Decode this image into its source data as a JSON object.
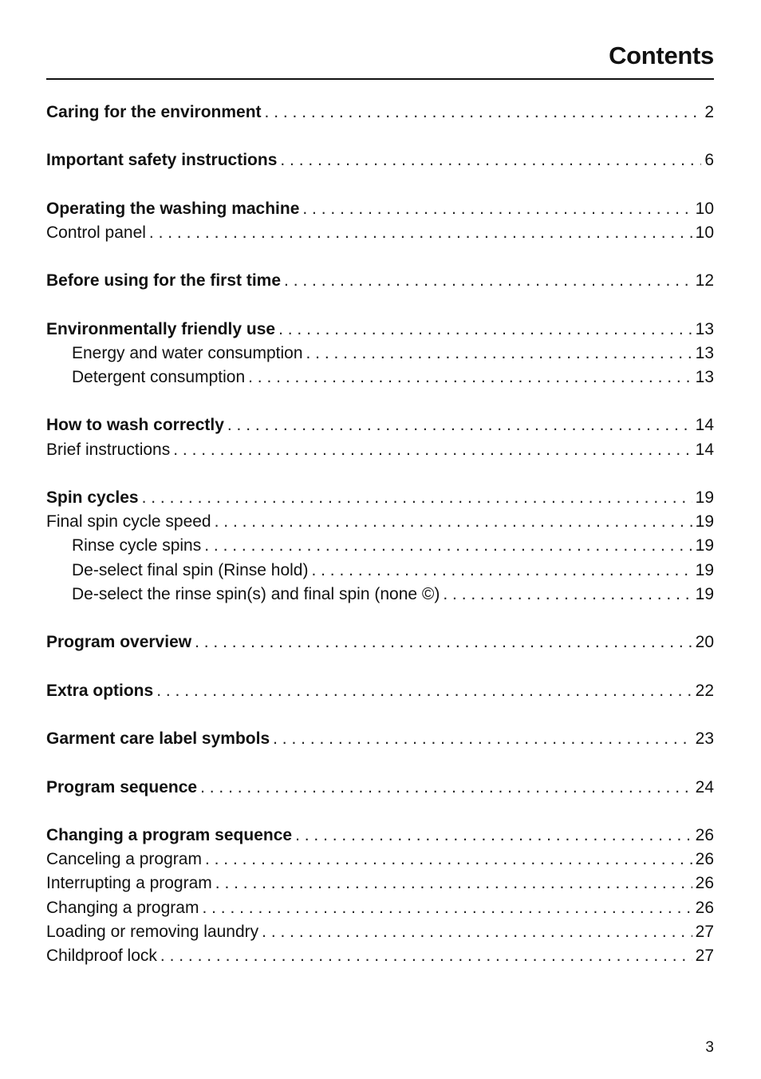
{
  "title": "Contents",
  "entries": [
    {
      "label": "Caring for the environment",
      "page": "2",
      "level": "bold"
    },
    {
      "label": "Important safety instructions",
      "page": "6",
      "level": "bold"
    },
    {
      "label": "Operating the washing machine",
      "page": "10",
      "level": "bold"
    },
    {
      "label": "Control panel",
      "page": "10",
      "level": "sub"
    },
    {
      "label": "Before using for the first time",
      "page": "12",
      "level": "bold"
    },
    {
      "label": "Environmentally friendly use",
      "page": "13",
      "level": "bold"
    },
    {
      "label": "Energy and water consumption",
      "page": "13",
      "level": "subsub"
    },
    {
      "label": "Detergent consumption",
      "page": "13",
      "level": "subsub"
    },
    {
      "label": "How to wash correctly",
      "page": "14",
      "level": "bold"
    },
    {
      "label": "Brief instructions",
      "page": "14",
      "level": "sub"
    },
    {
      "label": "Spin cycles",
      "page": "19",
      "level": "bold"
    },
    {
      "label": "Final spin cycle speed",
      "page": "19",
      "level": "sub"
    },
    {
      "label": "Rinse cycle spins",
      "page": "19",
      "level": "subsub"
    },
    {
      "label": "De-select final spin (Rinse hold)",
      "page": "19",
      "level": "subsub"
    },
    {
      "label": "De-select the rinse spin(s) and final spin (none ©)",
      "page": "19",
      "level": "subsub"
    },
    {
      "label": "Program overview",
      "page": "20",
      "level": "bold"
    },
    {
      "label": "Extra options",
      "page": "22",
      "level": "bold"
    },
    {
      "label": "Garment care label symbols",
      "page": "23",
      "level": "bold"
    },
    {
      "label": "Program sequence",
      "page": "24",
      "level": "bold"
    },
    {
      "label": "Changing a program sequence",
      "page": "26",
      "level": "bold"
    },
    {
      "label": "Canceling a program",
      "page": "26",
      "level": "sub"
    },
    {
      "label": "Interrupting a program",
      "page": "26",
      "level": "sub"
    },
    {
      "label": "Changing a program",
      "page": "26",
      "level": "sub"
    },
    {
      "label": "Loading or removing laundry",
      "page": "27",
      "level": "sub"
    },
    {
      "label": "Childproof lock",
      "page": "27",
      "level": "sub"
    }
  ],
  "footer_page_number": "3"
}
